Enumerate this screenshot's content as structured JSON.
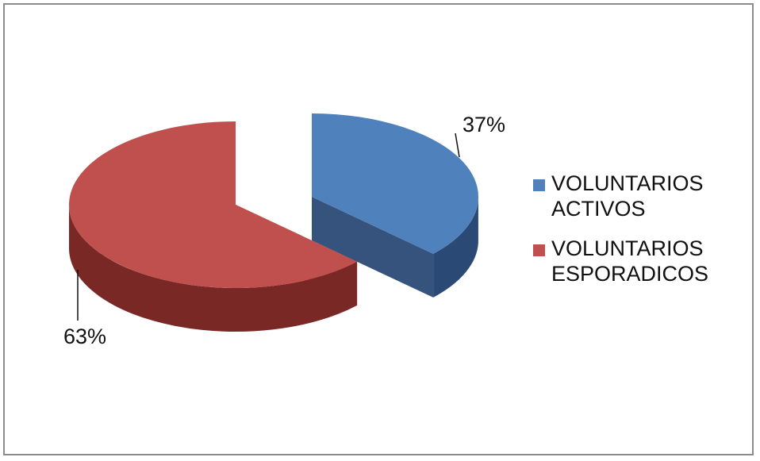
{
  "chart_data": {
    "type": "pie",
    "title": "",
    "slices": [
      {
        "label": "VOLUNTARIOS\nACTIVOS",
        "value": 37,
        "display": "37%",
        "color": "#4F81BD",
        "side_color": "#2A4A75"
      },
      {
        "label": "VOLUNTARIOS\nESPORADICOS",
        "value": 63,
        "display": "63%",
        "color": "#C0504D",
        "side_color": "#7A2826"
      }
    ],
    "style": "3d-exploded",
    "legend_position": "right"
  }
}
